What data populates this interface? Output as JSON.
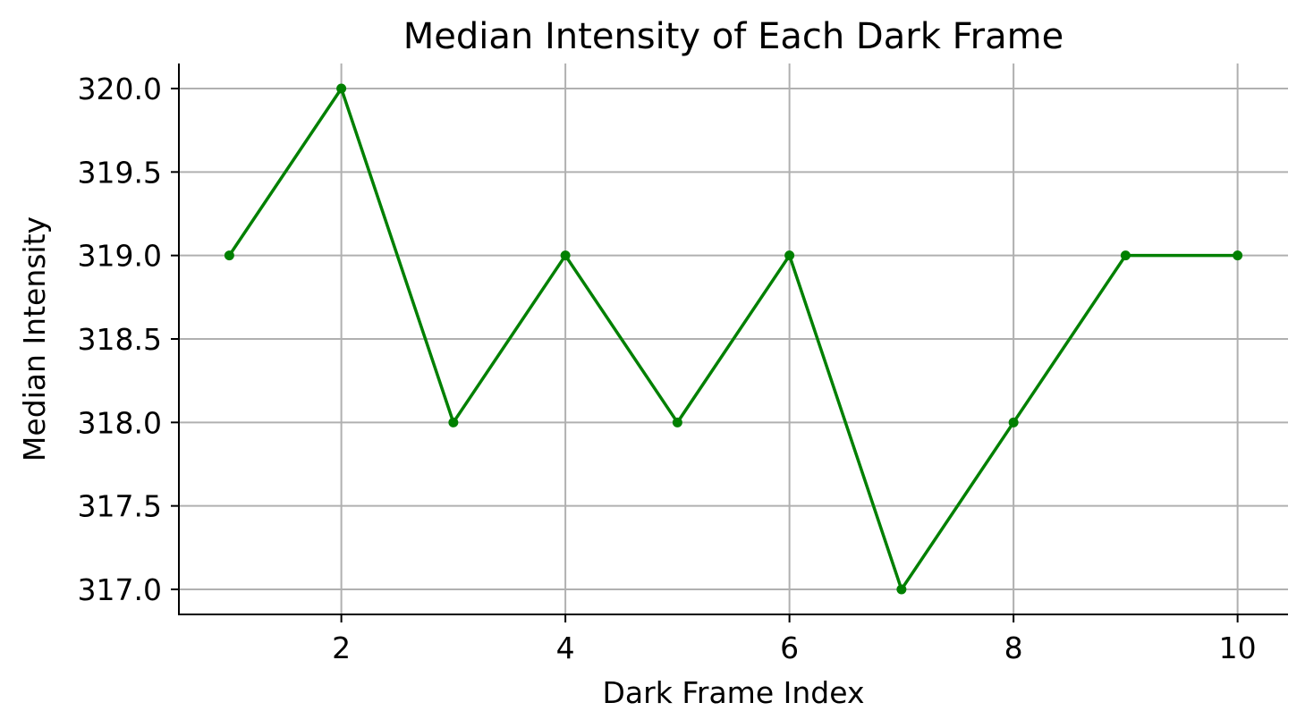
{
  "chart_data": {
    "type": "line",
    "title": "Median Intensity of Each Dark Frame",
    "xlabel": "Dark Frame Index",
    "ylabel": "Median Intensity",
    "x": [
      1,
      2,
      3,
      4,
      5,
      6,
      7,
      8,
      9,
      10
    ],
    "series": [
      {
        "values": [
          319,
          320,
          318,
          319,
          318,
          319,
          317,
          318,
          319,
          319
        ],
        "color": "#008000",
        "marker": "circle"
      }
    ],
    "xlim": [
      0.55,
      10.45
    ],
    "ylim": [
      316.85,
      320.15
    ],
    "xticks": [
      2,
      4,
      6,
      8,
      10
    ],
    "xtick_labels": [
      "2",
      "4",
      "6",
      "8",
      "10"
    ],
    "yticks": [
      317.0,
      317.5,
      318.0,
      318.5,
      319.0,
      319.5,
      320.0
    ],
    "ytick_labels": [
      "317.0",
      "317.5",
      "318.0",
      "318.5",
      "319.0",
      "319.5",
      "320.0"
    ],
    "grid": true,
    "legend": "none",
    "spines": "left-bottom"
  }
}
